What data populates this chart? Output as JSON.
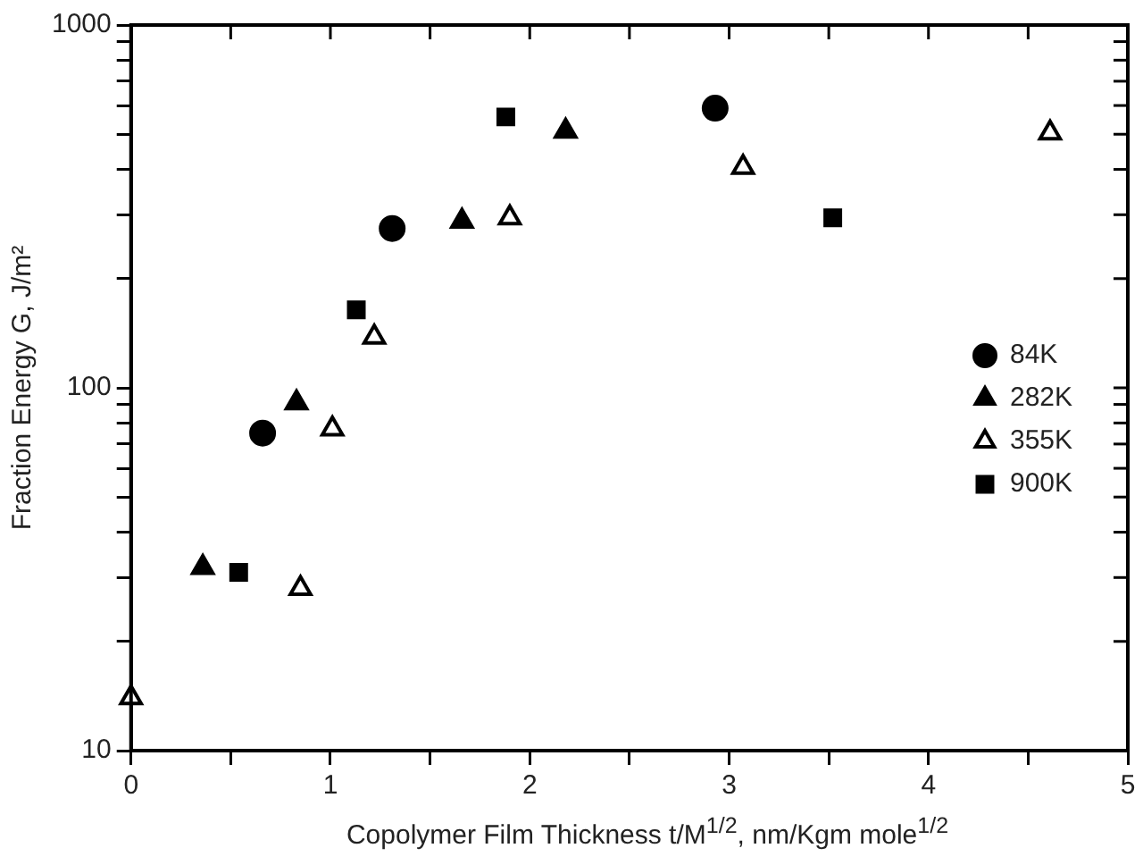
{
  "chart_data": {
    "type": "scatter",
    "xlabel": "Copolymer Film Thickness t/M$^{1/2}$, nm/Kgm mole$^{1/2}$",
    "ylabel": "Fraction Energy G, J/m²",
    "log": "y",
    "grid": false,
    "legend": "center right",
    "xlim": [
      0,
      5
    ],
    "ylim": [
      10,
      1000
    ],
    "xticks": [
      0,
      {
        "value": 0.5,
        "label": null
      },
      1,
      {
        "value": 1.5,
        "label": null
      },
      2,
      {
        "value": 2.5,
        "label": null
      },
      3,
      {
        "value": 3.5,
        "label": null
      },
      4,
      {
        "value": 4.5,
        "label": null
      },
      5
    ],
    "yticks": [
      10,
      {
        "value": 20,
        "label": null
      },
      {
        "value": 30,
        "label": null
      },
      {
        "value": 40,
        "label": null
      },
      {
        "value": 50,
        "label": null
      },
      {
        "value": 60,
        "label": null
      },
      {
        "value": 70,
        "label": null
      },
      {
        "value": 80,
        "label": null
      },
      {
        "value": 90,
        "label": null
      },
      100,
      {
        "value": 200,
        "label": null
      },
      {
        "value": 300,
        "label": null
      },
      {
        "value": 400,
        "label": null
      },
      {
        "value": 500,
        "label": null
      },
      {
        "value": 600,
        "label": null
      },
      {
        "value": 700,
        "label": null
      },
      {
        "value": 800,
        "label": null
      },
      {
        "value": 900,
        "label": null
      },
      1000
    ],
    "series": [
      {
        "name": "84K",
        "color": "#000000",
        "marker": "circle",
        "x": [
          0.66,
          1.31,
          2.93
        ],
        "values": [
          75,
          275,
          590
        ]
      },
      {
        "name": "282K",
        "color": "#000000",
        "marker": "triangle",
        "x": [
          0.36,
          0.83,
          1.66,
          2.18
        ],
        "values": [
          32,
          91,
          288,
          510
        ]
      },
      {
        "name": "355K",
        "color": "#ffffff",
        "marker": "triangle",
        "x": [
          0,
          0.85,
          1.01,
          1.22,
          1.9,
          3.07,
          4.61
        ],
        "values": [
          14,
          28,
          77,
          138,
          294,
          405,
          504
        ]
      },
      {
        "name": "900K",
        "color": "#000000",
        "marker": "square",
        "x": [
          0.54,
          1.13,
          1.88,
          3.52
        ],
        "values": [
          31,
          164,
          558,
          294
        ]
      }
    ]
  }
}
